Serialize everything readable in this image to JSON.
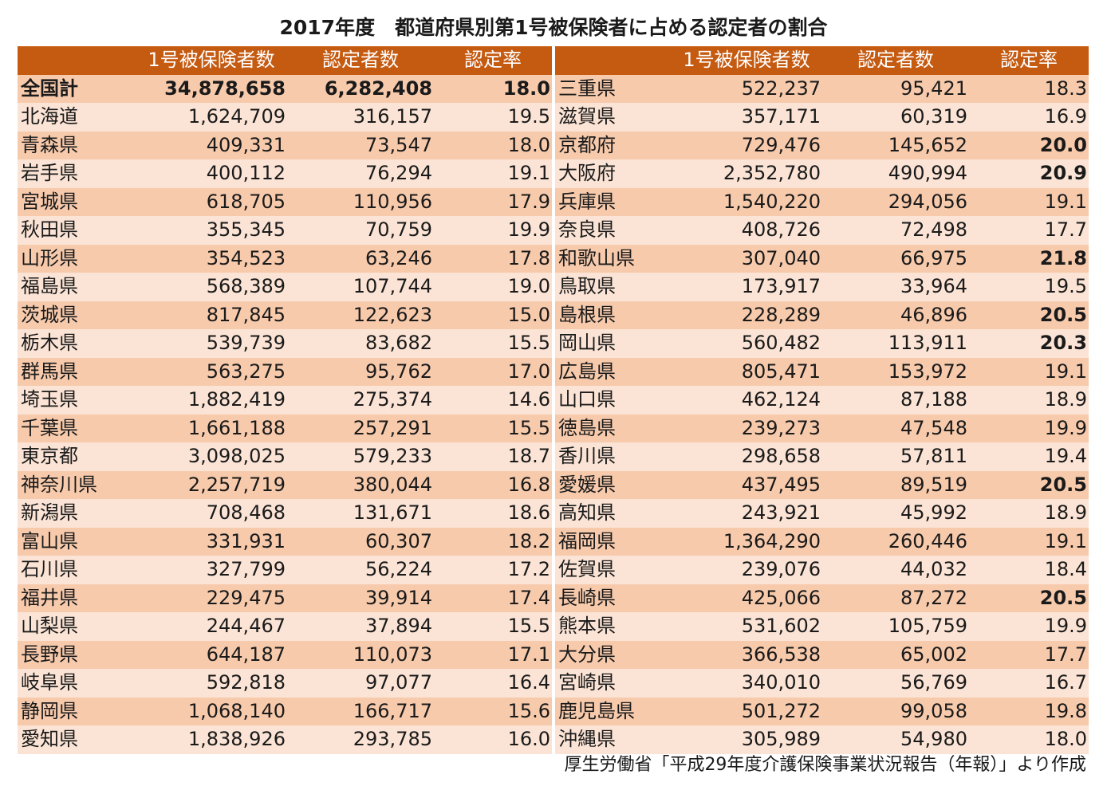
{
  "title": "2017年度　都道府県別第1号被保険者に占める認定者の割合",
  "columns": [
    "",
    "1号被保険者数",
    "認定者数",
    "認定率"
  ],
  "total": {
    "name": "全国計",
    "insured": "34,878,658",
    "certified": "6,282,408",
    "rate": "18.0"
  },
  "left_rows": [
    {
      "name": "北海道",
      "insured": "1,624,709",
      "certified": "316,157",
      "rate": "19.5"
    },
    {
      "name": "青森県",
      "insured": "409,331",
      "certified": "73,547",
      "rate": "18.0"
    },
    {
      "name": "岩手県",
      "insured": "400,112",
      "certified": "76,294",
      "rate": "19.1"
    },
    {
      "name": "宮城県",
      "insured": "618,705",
      "certified": "110,956",
      "rate": "17.9"
    },
    {
      "name": "秋田県",
      "insured": "355,345",
      "certified": "70,759",
      "rate": "19.9"
    },
    {
      "name": "山形県",
      "insured": "354,523",
      "certified": "63,246",
      "rate": "17.8"
    },
    {
      "name": "福島県",
      "insured": "568,389",
      "certified": "107,744",
      "rate": "19.0"
    },
    {
      "name": "茨城県",
      "insured": "817,845",
      "certified": "122,623",
      "rate": "15.0"
    },
    {
      "name": "栃木県",
      "insured": "539,739",
      "certified": "83,682",
      "rate": "15.5"
    },
    {
      "name": "群馬県",
      "insured": "563,275",
      "certified": "95,762",
      "rate": "17.0"
    },
    {
      "name": "埼玉県",
      "insured": "1,882,419",
      "certified": "275,374",
      "rate": "14.6"
    },
    {
      "name": "千葉県",
      "insured": "1,661,188",
      "certified": "257,291",
      "rate": "15.5"
    },
    {
      "name": "東京都",
      "insured": "3,098,025",
      "certified": "579,233",
      "rate": "18.7"
    },
    {
      "name": "神奈川県",
      "insured": "2,257,719",
      "certified": "380,044",
      "rate": "16.8"
    },
    {
      "name": "新潟県",
      "insured": "708,468",
      "certified": "131,671",
      "rate": "18.6"
    },
    {
      "name": "富山県",
      "insured": "331,931",
      "certified": "60,307",
      "rate": "18.2"
    },
    {
      "name": "石川県",
      "insured": "327,799",
      "certified": "56,224",
      "rate": "17.2"
    },
    {
      "name": "福井県",
      "insured": "229,475",
      "certified": "39,914",
      "rate": "17.4"
    },
    {
      "name": "山梨県",
      "insured": "244,467",
      "certified": "37,894",
      "rate": "15.5"
    },
    {
      "name": "長野県",
      "insured": "644,187",
      "certified": "110,073",
      "rate": "17.1"
    },
    {
      "name": "岐阜県",
      "insured": "592,818",
      "certified": "97,077",
      "rate": "16.4"
    },
    {
      "name": "静岡県",
      "insured": "1,068,140",
      "certified": "166,717",
      "rate": "15.6"
    },
    {
      "name": "愛知県",
      "insured": "1,838,926",
      "certified": "293,785",
      "rate": "16.0"
    }
  ],
  "right_rows": [
    {
      "name": "三重県",
      "insured": "522,237",
      "certified": "95,421",
      "rate": "18.3"
    },
    {
      "name": "滋賀県",
      "insured": "357,171",
      "certified": "60,319",
      "rate": "16.9"
    },
    {
      "name": "京都府",
      "insured": "729,476",
      "certified": "145,652",
      "rate": "20.0",
      "highlight": true
    },
    {
      "name": "大阪府",
      "insured": "2,352,780",
      "certified": "490,994",
      "rate": "20.9",
      "highlight": true
    },
    {
      "name": "兵庫県",
      "insured": "1,540,220",
      "certified": "294,056",
      "rate": "19.1"
    },
    {
      "name": "奈良県",
      "insured": "408,726",
      "certified": "72,498",
      "rate": "17.7"
    },
    {
      "name": "和歌山県",
      "insured": "307,040",
      "certified": "66,975",
      "rate": "21.8",
      "highlight": true
    },
    {
      "name": "鳥取県",
      "insured": "173,917",
      "certified": "33,964",
      "rate": "19.5"
    },
    {
      "name": "島根県",
      "insured": "228,289",
      "certified": "46,896",
      "rate": "20.5",
      "highlight": true
    },
    {
      "name": "岡山県",
      "insured": "560,482",
      "certified": "113,911",
      "rate": "20.3",
      "highlight": true
    },
    {
      "name": "広島県",
      "insured": "805,471",
      "certified": "153,972",
      "rate": "19.1"
    },
    {
      "name": "山口県",
      "insured": "462,124",
      "certified": "87,188",
      "rate": "18.9"
    },
    {
      "name": "徳島県",
      "insured": "239,273",
      "certified": "47,548",
      "rate": "19.9"
    },
    {
      "name": "香川県",
      "insured": "298,658",
      "certified": "57,811",
      "rate": "19.4"
    },
    {
      "name": "愛媛県",
      "insured": "437,495",
      "certified": "89,519",
      "rate": "20.5",
      "highlight": true
    },
    {
      "name": "高知県",
      "insured": "243,921",
      "certified": "45,992",
      "rate": "18.9"
    },
    {
      "name": "福岡県",
      "insured": "1,364,290",
      "certified": "260,446",
      "rate": "19.1"
    },
    {
      "name": "佐賀県",
      "insured": "239,076",
      "certified": "44,032",
      "rate": "18.4"
    },
    {
      "name": "長崎県",
      "insured": "425,066",
      "certified": "87,272",
      "rate": "20.5",
      "highlight": true
    },
    {
      "name": "熊本県",
      "insured": "531,602",
      "certified": "105,759",
      "rate": "19.9"
    },
    {
      "name": "大分県",
      "insured": "366,538",
      "certified": "65,002",
      "rate": "17.7"
    },
    {
      "name": "宮崎県",
      "insured": "340,010",
      "certified": "56,769",
      "rate": "16.7"
    },
    {
      "name": "鹿児島県",
      "insured": "501,272",
      "certified": "99,058",
      "rate": "19.8"
    },
    {
      "name": "沖縄県",
      "insured": "305,989",
      "certified": "54,980",
      "rate": "18.0"
    }
  ],
  "source": "厚生労働省「平成29年度介護保険事業状況報告（年報）」より作成"
}
